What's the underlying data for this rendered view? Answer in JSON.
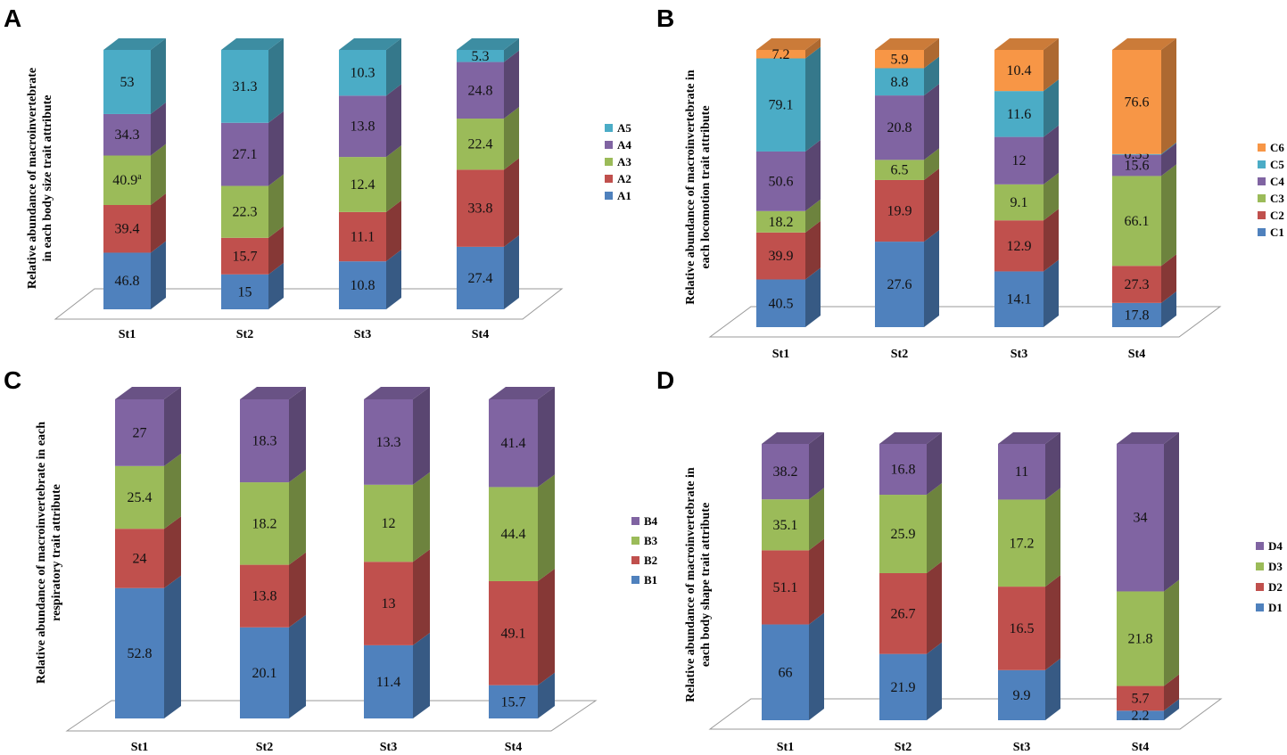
{
  "colors": {
    "blue": "#4F81BD",
    "red": "#C0504D",
    "green": "#9BBB59",
    "purple": "#8064A2",
    "teal": "#4BACC6",
    "orange": "#F79646"
  },
  "chart_data": [
    {
      "type": "bar",
      "stacked": true,
      "panel": "A",
      "title": "",
      "ylabel_lines": [
        "Relative abundance of  macroinvertebrate",
        "in each body size trait attribute"
      ],
      "categories": [
        "St1",
        "St2",
        "St3",
        "St4"
      ],
      "series": [
        {
          "name": "A1",
          "color": "#4F81BD",
          "values": [
            46.8,
            15,
            10.8,
            27.4
          ],
          "labels": [
            "46.8",
            "15",
            "10.8",
            "27.4"
          ]
        },
        {
          "name": "A2",
          "color": "#C0504D",
          "values": [
            39.4,
            15.7,
            11.1,
            33.8
          ],
          "labels": [
            "39.4",
            "15.7",
            "11.1",
            "33.8"
          ]
        },
        {
          "name": "A3",
          "color": "#9BBB59",
          "values": [
            40.9,
            22.3,
            12.4,
            22.4
          ],
          "labels": [
            "40.9",
            "22.3",
            "12.4",
            "22.4"
          ],
          "superscripts": [
            "a",
            "",
            "",
            ""
          ]
        },
        {
          "name": "A4",
          "color": "#8064A2",
          "values": [
            34.3,
            27.1,
            13.8,
            24.8
          ],
          "labels": [
            "34.3",
            "27.1",
            "13.8",
            "24.8"
          ]
        },
        {
          "name": "A5",
          "color": "#4BACC6",
          "values": [
            53,
            31.3,
            10.3,
            5.3
          ],
          "labels": [
            "53",
            "31.3",
            "10.3",
            "5.3"
          ]
        }
      ]
    },
    {
      "type": "bar",
      "stacked": true,
      "panel": "B",
      "title": "",
      "ylabel_lines": [
        "Relative abundance of  macroinvertebrate in",
        "each locomotion  trait attribute"
      ],
      "categories": [
        "St1",
        "St2",
        "St3",
        "St4"
      ],
      "series": [
        {
          "name": "C1",
          "color": "#4F81BD",
          "values": [
            40.5,
            27.6,
            14.1,
            17.8
          ],
          "labels": [
            "40.5",
            "27.6",
            "14.1",
            "17.8"
          ]
        },
        {
          "name": "C2",
          "color": "#C0504D",
          "values": [
            39.9,
            19.9,
            12.9,
            27.3
          ],
          "labels": [
            "39.9",
            "19.9",
            "12.9",
            "27.3"
          ]
        },
        {
          "name": "C3",
          "color": "#9BBB59",
          "values": [
            18.2,
            6.5,
            9.1,
            66.1
          ],
          "labels": [
            "18.2",
            "6.5",
            "9.1",
            "66.1"
          ]
        },
        {
          "name": "C4",
          "color": "#8064A2",
          "values": [
            50.6,
            20.8,
            12,
            15.6
          ],
          "labels": [
            "50.6",
            "20.8",
            "12",
            "15.6"
          ]
        },
        {
          "name": "C5",
          "color": "#4BACC6",
          "values": [
            79.1,
            8.8,
            11.6,
            0.55
          ],
          "labels": [
            "79.1",
            "8.8",
            "11.6",
            "0.55"
          ]
        },
        {
          "name": "C6",
          "color": "#F79646",
          "values": [
            7.2,
            5.9,
            10.4,
            76.6
          ],
          "labels": [
            "7.2",
            "5.9",
            "10.4",
            "76.6"
          ]
        }
      ]
    },
    {
      "type": "bar",
      "stacked": true,
      "panel": "C",
      "title": "",
      "ylabel_lines": [
        "Relative abundance of macroinvertebrate in each",
        "respiratory trait attribute"
      ],
      "categories": [
        "St1",
        "St2",
        "St3",
        "St4"
      ],
      "series": [
        {
          "name": "B1",
          "color": "#4F81BD",
          "values": [
            52.8,
            20.1,
            11.4,
            15.7
          ],
          "labels": [
            "52.8",
            "20.1",
            "11.4",
            "15.7"
          ]
        },
        {
          "name": "B2",
          "color": "#C0504D",
          "values": [
            24,
            13.8,
            13,
            49.1
          ],
          "labels": [
            "24",
            "13.8",
            "13",
            "49.1"
          ]
        },
        {
          "name": "B3",
          "color": "#9BBB59",
          "values": [
            25.4,
            18.2,
            12,
            44.4
          ],
          "labels": [
            "25.4",
            "18.2",
            "12",
            "44.4"
          ]
        },
        {
          "name": "B4",
          "color": "#8064A2",
          "values": [
            27,
            18.3,
            13.3,
            41.4
          ],
          "labels": [
            "27",
            "18.3",
            "13.3",
            "41.4"
          ]
        }
      ]
    },
    {
      "type": "bar",
      "stacked": true,
      "panel": "D",
      "title": "",
      "ylabel_lines": [
        "Relative abundance of macroinvertebrate in",
        "each body shape trait attribute"
      ],
      "categories": [
        "St1",
        "St2",
        "St3",
        "St4"
      ],
      "series": [
        {
          "name": "D1",
          "color": "#4F81BD",
          "values": [
            66,
            21.9,
            9.9,
            2.2
          ],
          "labels": [
            "66",
            "21.9",
            "9.9",
            "2.2"
          ]
        },
        {
          "name": "D2",
          "color": "#C0504D",
          "values": [
            51.1,
            26.7,
            16.5,
            5.7
          ],
          "labels": [
            "51.1",
            "26.7",
            "16.5",
            "5.7"
          ]
        },
        {
          "name": "D3",
          "color": "#9BBB59",
          "values": [
            35.1,
            25.9,
            17.2,
            21.8
          ],
          "labels": [
            "35.1",
            "25.9",
            "17.2",
            "21.8"
          ]
        },
        {
          "name": "D4",
          "color": "#8064A2",
          "values": [
            38.2,
            16.8,
            11,
            34
          ],
          "labels": [
            "38.2",
            "16.8",
            "11",
            "34"
          ]
        }
      ]
    }
  ]
}
